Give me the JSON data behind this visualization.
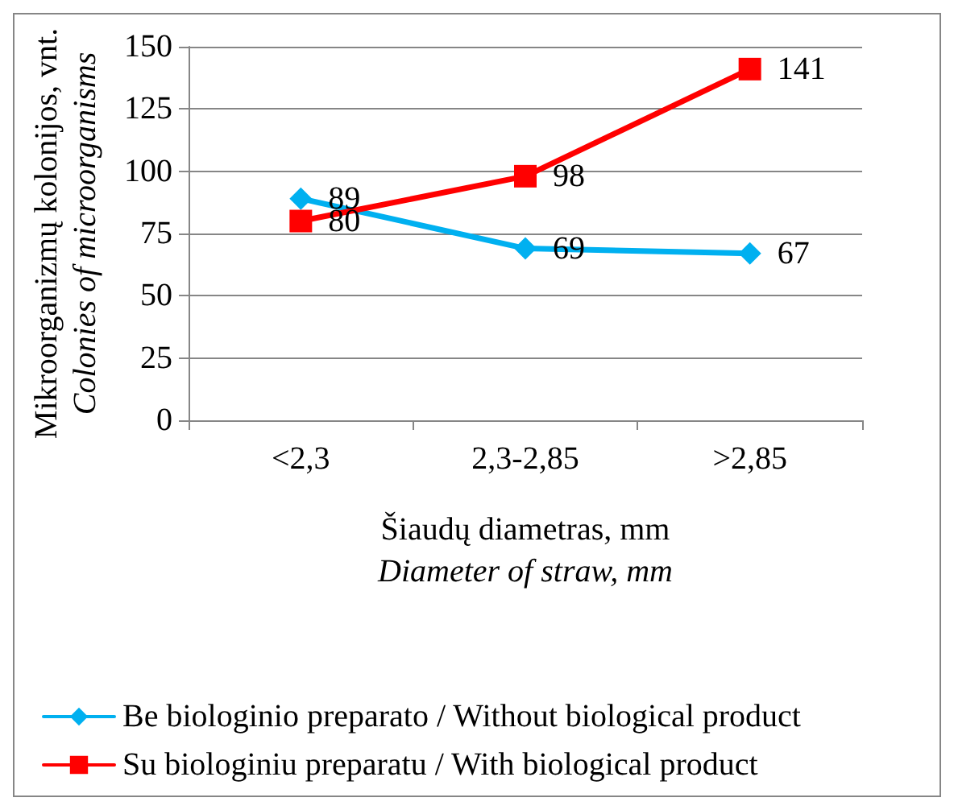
{
  "chart_data": {
    "type": "line",
    "xlabel": "Šiaudų diametras, mm\nDiameter of straw, mm",
    "ylabel": "Mikroorganizmų kolonijos, vnt.\nColonies of microorganisms",
    "categories": [
      "<2,3",
      "2,3-2,85",
      ">2,85"
    ],
    "series": [
      {
        "name": "Be biologinio preparato / Without biological product",
        "color": "#00b0f0",
        "marker": "diamond",
        "values": [
          89,
          69,
          67
        ]
      },
      {
        "name": "Su biologiniu preparatu / With biological product",
        "color": "#ff0000",
        "marker": "square",
        "values": [
          80,
          98,
          141
        ]
      }
    ],
    "ylim": [
      0,
      150
    ],
    "yticks": [
      0,
      25,
      50,
      75,
      100,
      125,
      150
    ],
    "grid": "y",
    "legend": "bottom",
    "data_labels": true,
    "line_style": "solid"
  }
}
